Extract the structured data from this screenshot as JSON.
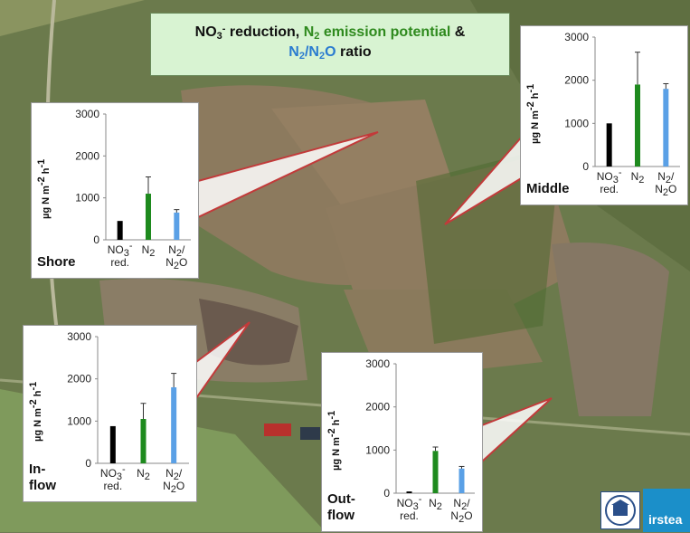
{
  "title": {
    "no3": "NO",
    "no3_sub": "3",
    "no3_sup": "-",
    "reduction_text": " reduction, ",
    "n2": "N",
    "n2_sub": "2",
    "emission_text": " emission potential",
    "amp": " &",
    "ratio_n": "N",
    "ratio_sub1": "2",
    "ratio_slash": "/N",
    "ratio_sub2": "2",
    "ratio_o": "O",
    "ratio_text": " ratio"
  },
  "colors": {
    "no3": "#000000",
    "n2": "#1e8a1e",
    "ratio": "#5aa0e6",
    "leader": "#c23a3a"
  },
  "ylabel": {
    "main": "µg N m",
    "sup1": "-2",
    "mid": " h",
    "sup2": "-1"
  },
  "xlabels": [
    {
      "top": "NO",
      "top_sub": "3",
      "top_sup": "-",
      "bottom": "red."
    },
    {
      "top": "N",
      "top_sub": "2",
      "top_sup": "",
      "bottom": ""
    },
    {
      "top": "N",
      "top_sub": "2",
      "top_sup": "",
      "top_suffix": "/",
      "bottom": "N",
      "bottom_sub": "2",
      "bottom_suffix": "O"
    }
  ],
  "chart_data": [
    {
      "type": "bar",
      "site": "Shore",
      "site_lines": [
        "Shore"
      ],
      "categories": [
        "NO3- red.",
        "N2",
        "N2/N2O"
      ],
      "values": [
        450,
        1100,
        650
      ],
      "error_upper": [
        0,
        1500,
        720
      ],
      "yticks": [
        0,
        1000,
        2000,
        3000
      ],
      "ylim": [
        0,
        3000
      ]
    },
    {
      "type": "bar",
      "site": "Middle",
      "site_lines": [
        "Middle"
      ],
      "categories": [
        "NO3- red.",
        "N2",
        "N2/N2O"
      ],
      "values": [
        1000,
        1900,
        1800
      ],
      "error_upper": [
        0,
        2650,
        1920
      ],
      "yticks": [
        0,
        1000,
        2000,
        3000
      ],
      "ylim": [
        0,
        3000
      ]
    },
    {
      "type": "bar",
      "site": "In-flow",
      "site_lines": [
        "In-",
        "flow"
      ],
      "categories": [
        "NO3- red.",
        "N2",
        "N2/N2O"
      ],
      "values": [
        880,
        1050,
        1800
      ],
      "error_upper": [
        0,
        1420,
        2130
      ],
      "yticks": [
        0,
        1000,
        2000,
        3000
      ],
      "ylim": [
        0,
        3000
      ]
    },
    {
      "type": "bar",
      "site": "Out-flow",
      "site_lines": [
        "Out-",
        "flow"
      ],
      "categories": [
        "NO3- red.",
        "N2",
        "N2/N2O"
      ],
      "values": [
        40,
        980,
        570
      ],
      "error_upper": [
        0,
        1070,
        620
      ],
      "yticks": [
        0,
        1000,
        2000,
        3000
      ],
      "ylim": [
        0,
        3000
      ]
    }
  ],
  "logos": {
    "logo2_text": "irstea"
  }
}
